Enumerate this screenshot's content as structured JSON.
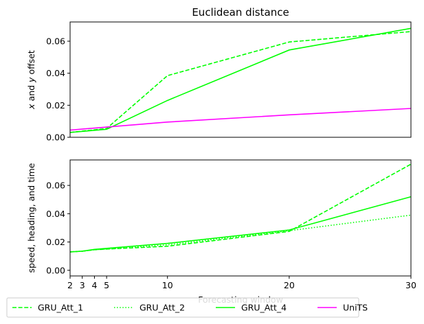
{
  "chart_data": [
    {
      "type": "line",
      "title": "Euclidean distance",
      "ylabel": "x and y offset",
      "ylabel_parts": [
        {
          "text": "x",
          "italic": true
        },
        {
          "text": " and ",
          "italic": false
        },
        {
          "text": "y",
          "italic": true
        },
        {
          "text": " offset",
          "italic": false
        }
      ],
      "xlim": [
        2,
        30
      ],
      "ylim": [
        0,
        0.072
      ],
      "yticks": [
        0.0,
        0.02,
        0.04,
        0.06
      ],
      "ytick_labels": [
        "0.00",
        "0.02",
        "0.04",
        "0.06"
      ],
      "show_xticks": false,
      "grid": false,
      "series": [
        {
          "name": "GRU_Att_1",
          "color": "#00ff00",
          "dash": "dashed",
          "x": [
            2,
            5,
            10,
            20,
            30
          ],
          "y": [
            0.003,
            0.0055,
            0.0385,
            0.0595,
            0.066
          ]
        },
        {
          "name": "GRU_Att_4",
          "color": "#00ff00",
          "dash": "solid",
          "x": [
            2,
            5,
            10,
            20,
            30
          ],
          "y": [
            0.003,
            0.005,
            0.023,
            0.0545,
            0.068
          ]
        },
        {
          "name": "UniTS",
          "color": "#ff00ff",
          "dash": "solid",
          "x": [
            2,
            10,
            20,
            30
          ],
          "y": [
            0.0045,
            0.0095,
            0.014,
            0.018
          ]
        }
      ]
    },
    {
      "type": "line",
      "title": "",
      "ylabel": "speed, heading, and time",
      "xlabel": "Forecasting window",
      "xlim": [
        2,
        30
      ],
      "ylim": [
        -0.004,
        0.078
      ],
      "xticks": [
        2,
        3,
        4,
        5,
        10,
        20,
        30
      ],
      "xtick_labels": [
        "2",
        "3",
        "4",
        "5",
        "10",
        "20",
        "30"
      ],
      "yticks": [
        0.0,
        0.02,
        0.04,
        0.06
      ],
      "ytick_labels": [
        "0.00",
        "0.02",
        "0.04",
        "0.06"
      ],
      "grid": false,
      "series": [
        {
          "name": "GRU_Att_1",
          "color": "#00ff00",
          "dash": "dashed",
          "x": [
            2,
            3,
            4,
            5,
            10,
            20,
            30
          ],
          "y": [
            0.013,
            0.0135,
            0.0145,
            0.015,
            0.017,
            0.0275,
            0.075
          ]
        },
        {
          "name": "GRU_Att_2",
          "color": "#00ff00",
          "dash": "dotted",
          "x": [
            2,
            3,
            4,
            5,
            10,
            20,
            30
          ],
          "y": [
            0.013,
            0.0135,
            0.0145,
            0.015,
            0.018,
            0.028,
            0.039
          ]
        },
        {
          "name": "GRU_Att_4",
          "color": "#00ff00",
          "dash": "solid",
          "x": [
            2,
            3,
            4,
            5,
            10,
            20,
            30
          ],
          "y": [
            0.013,
            0.0135,
            0.0148,
            0.0155,
            0.019,
            0.0285,
            0.052
          ]
        }
      ]
    }
  ],
  "legend": {
    "placement": "bottom",
    "entries": [
      {
        "label": "GRU_Att_1",
        "color": "#00ff00",
        "dash": "dashed"
      },
      {
        "label": "GRU_Att_2",
        "color": "#00ff00",
        "dash": "dotted"
      },
      {
        "label": "GRU_Att_4",
        "color": "#00ff00",
        "dash": "solid"
      },
      {
        "label": "UniTS",
        "color": "#ff00ff",
        "dash": "solid"
      }
    ]
  }
}
